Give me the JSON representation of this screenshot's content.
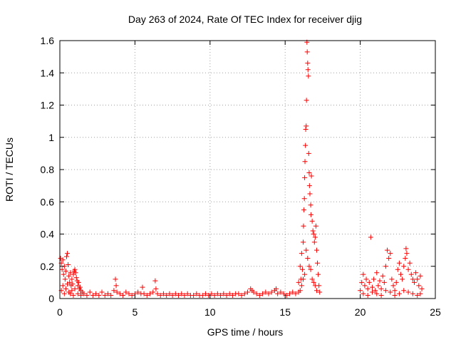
{
  "chart_data": {
    "type": "scatter",
    "title": "Day 263 of 2024, Rate Of TEC Index for receiver djig",
    "xlabel": "GPS time / hours",
    "ylabel": "ROTI / TECUs",
    "xlim": [
      0,
      25
    ],
    "ylim": [
      0,
      1.6
    ],
    "xticks": [
      0,
      5,
      10,
      15,
      20,
      25
    ],
    "yticks": [
      0,
      0.2,
      0.4,
      0.6,
      0.8,
      1,
      1.2,
      1.4,
      1.6
    ],
    "xtick_labels": [
      "0",
      "5",
      "10",
      "15",
      "20",
      "25"
    ],
    "ytick_labels": [
      "0",
      "0.2",
      "0.4",
      "0.6",
      "0.8",
      "1",
      "1.2",
      "1.4",
      "1.6"
    ],
    "grid": true,
    "marker": "+",
    "series": [
      {
        "color": "#ff0000",
        "points": [
          [
            0.05,
            0.25
          ],
          [
            0.1,
            0.22
          ],
          [
            0.15,
            0.18
          ],
          [
            0.2,
            0.24
          ],
          [
            0.25,
            0.15
          ],
          [
            0.3,
            0.2
          ],
          [
            0.35,
            0.12
          ],
          [
            0.4,
            0.17
          ],
          [
            0.45,
            0.26
          ],
          [
            0.5,
            0.28
          ],
          [
            0.55,
            0.21
          ],
          [
            0.6,
            0.14
          ],
          [
            0.65,
            0.1
          ],
          [
            0.7,
            0.16
          ],
          [
            0.75,
            0.08
          ],
          [
            0.8,
            0.12
          ],
          [
            0.85,
            0.09
          ],
          [
            0.9,
            0.15
          ],
          [
            0.95,
            0.17
          ],
          [
            1.0,
            0.18
          ],
          [
            1.05,
            0.16
          ],
          [
            1.1,
            0.13
          ],
          [
            1.15,
            0.11
          ],
          [
            1.2,
            0.08
          ],
          [
            1.25,
            0.1
          ],
          [
            1.3,
            0.06
          ],
          [
            1.35,
            0.07
          ],
          [
            1.4,
            0.05
          ],
          [
            1.5,
            0.04
          ],
          [
            0.1,
            0.05
          ],
          [
            0.2,
            0.08
          ],
          [
            0.3,
            0.03
          ],
          [
            0.4,
            0.06
          ],
          [
            0.5,
            0.09
          ],
          [
            0.6,
            0.04
          ],
          [
            0.7,
            0.03
          ],
          [
            0.8,
            0.05
          ],
          [
            0.9,
            0.02
          ],
          [
            1.0,
            0.06
          ],
          [
            1.2,
            0.03
          ],
          [
            1.4,
            0.02
          ],
          [
            1.6,
            0.03
          ],
          [
            1.8,
            0.02
          ],
          [
            2.0,
            0.04
          ],
          [
            2.2,
            0.02
          ],
          [
            2.4,
            0.03
          ],
          [
            2.6,
            0.02
          ],
          [
            2.8,
            0.04
          ],
          [
            3.0,
            0.02
          ],
          [
            3.2,
            0.03
          ],
          [
            3.4,
            0.02
          ],
          [
            3.6,
            0.05
          ],
          [
            3.7,
            0.12
          ],
          [
            3.75,
            0.08
          ],
          [
            3.8,
            0.04
          ],
          [
            4.0,
            0.03
          ],
          [
            4.2,
            0.02
          ],
          [
            4.4,
            0.04
          ],
          [
            4.6,
            0.03
          ],
          [
            4.8,
            0.02
          ],
          [
            5.0,
            0.03
          ],
          [
            5.2,
            0.04
          ],
          [
            5.4,
            0.03
          ],
          [
            5.5,
            0.07
          ],
          [
            5.6,
            0.03
          ],
          [
            5.8,
            0.02
          ],
          [
            6.0,
            0.03
          ],
          [
            6.2,
            0.04
          ],
          [
            6.35,
            0.11
          ],
          [
            6.4,
            0.06
          ],
          [
            6.5,
            0.03
          ],
          [
            6.7,
            0.02
          ],
          [
            6.9,
            0.03
          ],
          [
            7.1,
            0.02
          ],
          [
            7.3,
            0.03
          ],
          [
            7.5,
            0.02
          ],
          [
            7.7,
            0.03
          ],
          [
            7.9,
            0.02
          ],
          [
            8.1,
            0.03
          ],
          [
            8.3,
            0.02
          ],
          [
            8.5,
            0.03
          ],
          [
            8.7,
            0.02
          ],
          [
            8.9,
            0.02
          ],
          [
            9.1,
            0.03
          ],
          [
            9.3,
            0.02
          ],
          [
            9.5,
            0.02
          ],
          [
            9.7,
            0.03
          ],
          [
            9.9,
            0.02
          ],
          [
            10.1,
            0.03
          ],
          [
            10.3,
            0.02
          ],
          [
            10.5,
            0.03
          ],
          [
            10.7,
            0.02
          ],
          [
            10.9,
            0.03
          ],
          [
            11.1,
            0.02
          ],
          [
            11.3,
            0.03
          ],
          [
            11.5,
            0.02
          ],
          [
            11.7,
            0.03
          ],
          [
            11.9,
            0.03
          ],
          [
            12.1,
            0.02
          ],
          [
            12.3,
            0.03
          ],
          [
            12.5,
            0.04
          ],
          [
            12.7,
            0.06
          ],
          [
            12.8,
            0.05
          ],
          [
            12.9,
            0.04
          ],
          [
            13.1,
            0.03
          ],
          [
            13.3,
            0.02
          ],
          [
            13.5,
            0.03
          ],
          [
            13.7,
            0.04
          ],
          [
            13.9,
            0.03
          ],
          [
            14.1,
            0.04
          ],
          [
            14.3,
            0.05
          ],
          [
            14.4,
            0.06
          ],
          [
            14.5,
            0.03
          ],
          [
            14.7,
            0.04
          ],
          [
            14.9,
            0.03
          ],
          [
            15.1,
            0.02
          ],
          [
            15.3,
            0.03
          ],
          [
            15.5,
            0.04
          ],
          [
            15.7,
            0.03
          ],
          [
            15.9,
            0.04
          ],
          [
            15.9,
            0.1
          ],
          [
            16.0,
            0.2
          ],
          [
            16.05,
            0.12
          ],
          [
            16.1,
            0.28
          ],
          [
            16.15,
            0.18
          ],
          [
            16.2,
            0.35
          ],
          [
            16.22,
            0.45
          ],
          [
            16.25,
            0.55
          ],
          [
            16.28,
            0.62
          ],
          [
            16.3,
            0.75
          ],
          [
            16.32,
            0.85
          ],
          [
            16.35,
            0.95
          ],
          [
            16.37,
            1.05
          ],
          [
            16.4,
            1.07
          ],
          [
            16.42,
            1.23
          ],
          [
            16.45,
            1.59
          ],
          [
            16.47,
            1.53
          ],
          [
            16.5,
            1.46
          ],
          [
            16.52,
            1.42
          ],
          [
            16.55,
            1.38
          ],
          [
            16.57,
            0.9
          ],
          [
            16.6,
            0.78
          ],
          [
            16.62,
            0.7
          ],
          [
            16.65,
            0.65
          ],
          [
            16.7,
            0.58
          ],
          [
            16.72,
            0.52
          ],
          [
            16.75,
            0.76
          ],
          [
            16.8,
            0.48
          ],
          [
            16.85,
            0.42
          ],
          [
            16.9,
            0.4
          ],
          [
            16.95,
            0.35
          ],
          [
            17.0,
            0.38
          ],
          [
            17.05,
            0.45
          ],
          [
            17.1,
            0.3
          ],
          [
            17.15,
            0.22
          ],
          [
            17.2,
            0.15
          ],
          [
            17.25,
            0.08
          ],
          [
            17.3,
            0.04
          ],
          [
            16.0,
            0.05
          ],
          [
            16.1,
            0.08
          ],
          [
            16.2,
            0.12
          ],
          [
            16.3,
            0.15
          ],
          [
            16.4,
            0.3
          ],
          [
            16.5,
            0.25
          ],
          [
            16.6,
            0.2
          ],
          [
            16.7,
            0.18
          ],
          [
            16.8,
            0.12
          ],
          [
            16.9,
            0.1
          ],
          [
            17.0,
            0.08
          ],
          [
            17.1,
            0.05
          ],
          [
            20.0,
            0.05
          ],
          [
            20.1,
            0.1
          ],
          [
            20.2,
            0.15
          ],
          [
            20.3,
            0.08
          ],
          [
            20.4,
            0.12
          ],
          [
            20.5,
            0.06
          ],
          [
            20.6,
            0.1
          ],
          [
            20.7,
            0.38
          ],
          [
            20.8,
            0.07
          ],
          [
            20.9,
            0.12
          ],
          [
            21.0,
            0.05
          ],
          [
            21.1,
            0.16
          ],
          [
            21.2,
            0.08
          ],
          [
            21.3,
            0.11
          ],
          [
            21.4,
            0.06
          ],
          [
            21.5,
            0.14
          ],
          [
            21.6,
            0.1
          ],
          [
            21.7,
            0.2
          ],
          [
            21.8,
            0.3
          ],
          [
            21.9,
            0.25
          ],
          [
            22.0,
            0.28
          ],
          [
            22.1,
            0.12
          ],
          [
            22.2,
            0.08
          ],
          [
            22.3,
            0.05
          ],
          [
            22.4,
            0.1
          ],
          [
            22.5,
            0.18
          ],
          [
            22.6,
            0.22
          ],
          [
            22.7,
            0.15
          ],
          [
            22.8,
            0.12
          ],
          [
            22.9,
            0.2
          ],
          [
            23.0,
            0.25
          ],
          [
            23.05,
            0.31
          ],
          [
            23.1,
            0.28
          ],
          [
            23.2,
            0.18
          ],
          [
            23.3,
            0.22
          ],
          [
            23.4,
            0.15
          ],
          [
            23.5,
            0.12
          ],
          [
            23.6,
            0.1
          ],
          [
            23.7,
            0.16
          ],
          [
            23.8,
            0.12
          ],
          [
            23.9,
            0.08
          ],
          [
            24.0,
            0.14
          ],
          [
            24.1,
            0.06
          ],
          [
            20.2,
            0.03
          ],
          [
            20.5,
            0.02
          ],
          [
            20.8,
            0.04
          ],
          [
            21.1,
            0.03
          ],
          [
            21.4,
            0.02
          ],
          [
            21.7,
            0.05
          ],
          [
            22.0,
            0.04
          ],
          [
            22.3,
            0.02
          ],
          [
            22.6,
            0.03
          ],
          [
            22.9,
            0.05
          ],
          [
            23.2,
            0.04
          ],
          [
            23.5,
            0.03
          ],
          [
            23.8,
            0.02
          ],
          [
            24.0,
            0.03
          ]
        ]
      }
    ]
  }
}
